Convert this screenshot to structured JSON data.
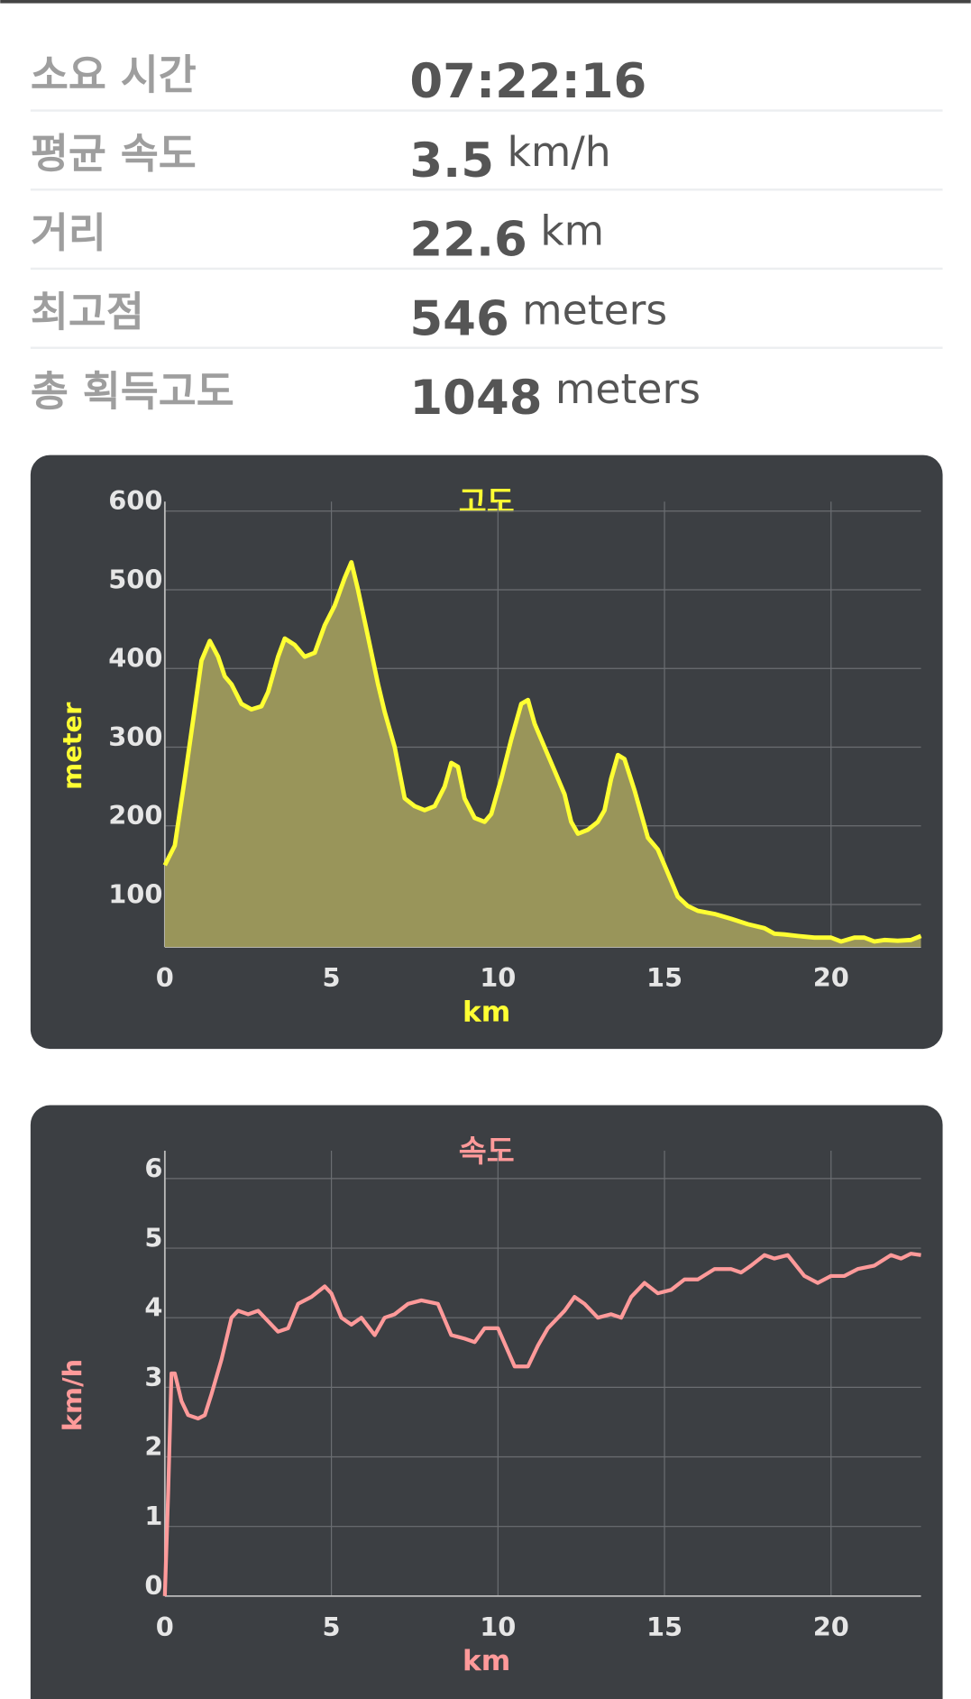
{
  "stats": [
    {
      "label": "소요 시간",
      "value": "07:22:16"
    },
    {
      "label": "평균 속도",
      "value": 3.5,
      "unit": "km/h"
    },
    {
      "label": "거리",
      "value": 22.6,
      "unit": "km"
    },
    {
      "label": "최고점",
      "value": 546,
      "unit": "meters"
    },
    {
      "label": "총 획득고도",
      "value": 1048,
      "unit": "meters"
    }
  ],
  "chart_data": [
    {
      "type": "area",
      "title": "고도",
      "x_label": "km",
      "y_label": "meter",
      "color": "#ffff33",
      "fill": "#99955a",
      "grid": true,
      "xlim": [
        0,
        22.7
      ],
      "ylim": [
        46,
        612
      ],
      "xticks": [
        0,
        5,
        10,
        15,
        20
      ],
      "yticks": [
        100,
        200,
        300,
        400,
        500,
        600
      ],
      "x": [
        0,
        0.3,
        0.6,
        0.9,
        1.1,
        1.35,
        1.6,
        1.8,
        2.0,
        2.3,
        2.6,
        2.9,
        3.1,
        3.4,
        3.6,
        3.9,
        4.2,
        4.5,
        4.8,
        5.1,
        5.4,
        5.6,
        5.8,
        6.1,
        6.4,
        6.6,
        6.9,
        7.2,
        7.5,
        7.8,
        8.1,
        8.4,
        8.6,
        8.8,
        9.0,
        9.3,
        9.6,
        9.8,
        10.1,
        10.4,
        10.7,
        10.9,
        11.1,
        11.4,
        11.7,
        12.0,
        12.2,
        12.4,
        12.7,
        13.0,
        13.2,
        13.4,
        13.6,
        13.8,
        14.1,
        14.5,
        14.8,
        15.1,
        15.4,
        15.7,
        16.0,
        16.5,
        17.0,
        17.5,
        18.0,
        18.3,
        18.6,
        19.0,
        19.5,
        20.0,
        20.3,
        20.7,
        21.0,
        21.3,
        21.6,
        22.0,
        22.4,
        22.7
      ],
      "values": [
        150,
        175,
        260,
        350,
        410,
        435,
        415,
        390,
        380,
        355,
        348,
        352,
        370,
        415,
        438,
        430,
        415,
        420,
        455,
        480,
        515,
        535,
        500,
        440,
        380,
        345,
        300,
        235,
        225,
        220,
        225,
        250,
        280,
        275,
        235,
        210,
        205,
        215,
        260,
        310,
        355,
        360,
        330,
        300,
        270,
        240,
        205,
        190,
        195,
        205,
        220,
        260,
        290,
        285,
        245,
        185,
        170,
        140,
        110,
        98,
        92,
        88,
        82,
        75,
        70,
        63,
        62,
        60,
        58,
        58,
        53,
        58,
        58,
        53,
        55,
        54,
        55,
        60
      ]
    },
    {
      "type": "line",
      "title": "속도",
      "x_label": "km",
      "y_label": "km/h",
      "color": "#ff9a9a",
      "grid": true,
      "xlim": [
        0,
        22.7
      ],
      "ylim": [
        0,
        6.4
      ],
      "xticks": [
        0,
        5,
        10,
        15,
        20
      ],
      "yticks": [
        0,
        1,
        2,
        3,
        4,
        5,
        6
      ],
      "x": [
        0,
        0.1,
        0.2,
        0.3,
        0.5,
        0.7,
        1.0,
        1.2,
        1.4,
        1.7,
        2.0,
        2.2,
        2.5,
        2.8,
        3.0,
        3.4,
        3.7,
        4.0,
        4.4,
        4.8,
        5.0,
        5.3,
        5.6,
        5.9,
        6.3,
        6.6,
        6.9,
        7.3,
        7.7,
        8.2,
        8.6,
        9.0,
        9.3,
        9.6,
        10.0,
        10.5,
        10.9,
        11.2,
        11.5,
        12.0,
        12.3,
        12.6,
        13.0,
        13.4,
        13.7,
        14.0,
        14.4,
        14.8,
        15.2,
        15.6,
        16.0,
        16.5,
        17.0,
        17.3,
        17.6,
        18.0,
        18.3,
        18.7,
        19.2,
        19.6,
        20.0,
        20.4,
        20.8,
        21.3,
        21.8,
        22.1,
        22.4,
        22.7
      ],
      "values": [
        0,
        1.5,
        3.2,
        3.2,
        2.8,
        2.6,
        2.55,
        2.6,
        2.9,
        3.4,
        4.0,
        4.1,
        4.05,
        4.1,
        4.0,
        3.8,
        3.85,
        4.2,
        4.3,
        4.45,
        4.35,
        4.0,
        3.9,
        4.0,
        3.75,
        4.0,
        4.05,
        4.2,
        4.25,
        4.2,
        3.75,
        3.7,
        3.65,
        3.85,
        3.85,
        3.3,
        3.3,
        3.6,
        3.85,
        4.1,
        4.3,
        4.2,
        4.0,
        4.05,
        4.0,
        4.3,
        4.5,
        4.35,
        4.4,
        4.55,
        4.55,
        4.7,
        4.7,
        4.65,
        4.75,
        4.9,
        4.85,
        4.9,
        4.6,
        4.5,
        4.6,
        4.6,
        4.7,
        4.75,
        4.9,
        4.85,
        4.92,
        4.9
      ]
    }
  ]
}
